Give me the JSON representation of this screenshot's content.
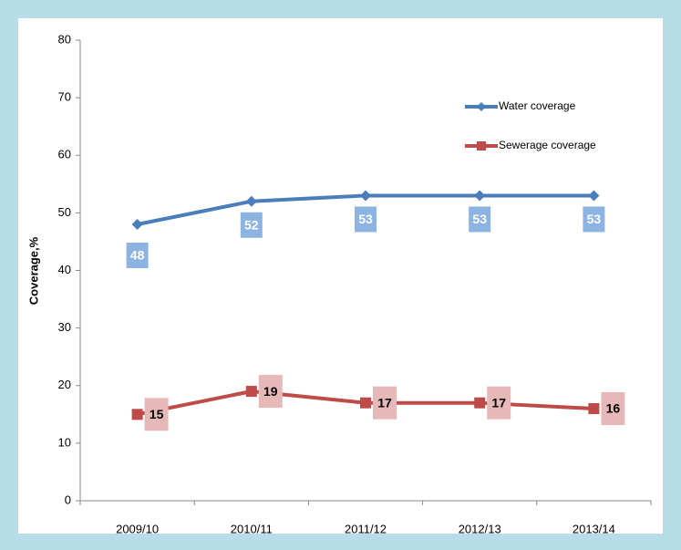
{
  "chart_data": {
    "type": "line",
    "y_label": "Coverage,%",
    "categories": [
      "2009/10",
      "2010/11",
      "2011/12",
      "2012/13",
      "2013/14"
    ],
    "series": [
      {
        "name": "Water coverage",
        "color": "#4a7ebb",
        "label_color": "#8db3e2",
        "values": [
          48,
          52,
          53,
          53,
          53
        ]
      },
      {
        "name": "Sewerage coverage",
        "color": "#be4b48",
        "label_color": "#e6b9b8",
        "values": [
          15,
          19,
          17,
          17,
          16
        ]
      }
    ],
    "ylim": [
      0,
      80
    ],
    "yticks": [
      0,
      10,
      20,
      30,
      40,
      50,
      60,
      70,
      80
    ],
    "grid": false,
    "legend": "upper right"
  }
}
